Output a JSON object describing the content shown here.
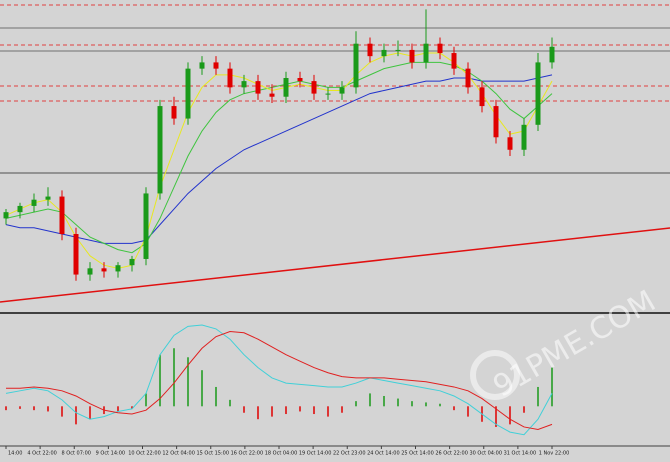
{
  "chart_data": {
    "type": "candlestick",
    "x_labels": [
      "14:00",
      "4 Oct 22:00",
      "8 Oct 07:00",
      "9 Oct 14:00",
      "10 Oct 22:00",
      "12 Oct 04:00",
      "15 Oct 15:00",
      "16 Oct 22:00",
      "18 Oct 04:00",
      "19 Oct 14:00",
      "22 Oct 23:00",
      "24 Oct 14:00",
      "25 Oct 14:00",
      "26 Oct 22:00",
      "30 Oct 04:00",
      "31 Oct 14:00",
      "1 Nov 22:00"
    ],
    "open": [
      30,
      32,
      34,
      36,
      37,
      25,
      12,
      14,
      13,
      15,
      17,
      38,
      66,
      62,
      78,
      80,
      78,
      72,
      74,
      70,
      69,
      75,
      74,
      70,
      70,
      72,
      86,
      82,
      84,
      84,
      80,
      86,
      83,
      78,
      72,
      66,
      56,
      52,
      60,
      80
    ],
    "high": [
      33,
      35,
      38,
      40,
      39,
      27,
      16,
      16,
      16,
      18,
      40,
      68,
      69,
      80,
      82,
      82,
      80,
      76,
      76,
      73,
      77,
      77,
      76,
      72,
      74,
      90,
      88,
      86,
      87,
      86,
      97,
      88,
      85,
      80,
      74,
      68,
      58,
      62,
      83,
      88
    ],
    "low": [
      28,
      30,
      32,
      34,
      23,
      10,
      10,
      11,
      11,
      13,
      15,
      36,
      60,
      60,
      76,
      76,
      70,
      70,
      68,
      67,
      67,
      72,
      68,
      68,
      68,
      70,
      80,
      80,
      82,
      78,
      78,
      81,
      76,
      70,
      64,
      54,
      50,
      50,
      58,
      78
    ],
    "close": [
      32,
      34,
      36,
      37,
      25,
      12,
      14,
      13,
      15,
      17,
      38,
      66,
      62,
      78,
      80,
      78,
      72,
      74,
      70,
      69,
      75,
      74,
      70,
      70,
      72,
      86,
      82,
      84,
      84,
      80,
      86,
      83,
      78,
      72,
      66,
      56,
      52,
      60,
      80,
      85
    ],
    "up_color": "#1a9a1a",
    "down_color": "#e00000",
    "ylim": [
      0,
      100
    ],
    "series": [
      {
        "color": "#2233cc",
        "values": [
          28,
          27,
          27,
          26,
          25,
          24,
          23,
          22,
          22,
          22,
          23,
          28,
          33,
          38,
          42,
          46,
          49,
          52,
          54,
          56,
          58,
          60,
          62,
          64,
          66,
          68,
          70,
          71,
          72,
          73,
          74,
          74,
          75,
          75,
          74,
          74,
          74,
          74,
          75,
          76
        ]
      },
      {
        "color": "#3fc43f",
        "values": [
          30,
          31,
          32,
          33,
          32,
          28,
          24,
          22,
          20,
          19,
          22,
          30,
          40,
          50,
          58,
          64,
          68,
          70,
          71,
          72,
          73,
          74,
          73,
          72,
          72,
          74,
          76,
          78,
          79,
          80,
          80,
          80,
          79,
          77,
          74,
          70,
          65,
          62,
          66,
          70
        ]
      },
      {
        "color": "#e8e820",
        "values": [
          31,
          33,
          35,
          36,
          32,
          24,
          18,
          15,
          14,
          15,
          24,
          40,
          52,
          64,
          72,
          76,
          76,
          75,
          73,
          71,
          72,
          73,
          72,
          71,
          71,
          76,
          80,
          82,
          83,
          82,
          83,
          83,
          80,
          76,
          70,
          63,
          57,
          58,
          66,
          74
        ]
      }
    ],
    "macd": {
      "ylim": [
        -30,
        70
      ],
      "histogram": [
        -3,
        -2,
        -3,
        -4,
        -8,
        -14,
        -10,
        -6,
        -4,
        -2,
        10,
        40,
        45,
        38,
        28,
        15,
        5,
        -5,
        -10,
        -8,
        -6,
        -4,
        -6,
        -8,
        -5,
        4,
        10,
        8,
        6,
        4,
        3,
        2,
        -3,
        -8,
        -12,
        -16,
        -14,
        -5,
        15,
        30
      ],
      "series": [
        {
          "color": "#40d0d8",
          "values": [
            10,
            12,
            14,
            12,
            5,
            -5,
            -10,
            -8,
            -4,
            -2,
            10,
            40,
            55,
            62,
            63,
            60,
            52,
            40,
            30,
            22,
            18,
            17,
            16,
            15,
            15,
            18,
            22,
            20,
            18,
            16,
            14,
            12,
            8,
            2,
            -6,
            -14,
            -20,
            -22,
            -10,
            10
          ]
        },
        {
          "color": "#e02020",
          "values": [
            14,
            14,
            15,
            14,
            12,
            8,
            2,
            -3,
            -5,
            -6,
            -3,
            6,
            18,
            32,
            45,
            54,
            58,
            57,
            52,
            46,
            40,
            35,
            30,
            26,
            23,
            22,
            22,
            22,
            21,
            20,
            19,
            17,
            15,
            12,
            6,
            -2,
            -10,
            -16,
            -18,
            -14
          ]
        }
      ]
    },
    "watermark": "91PME.COM"
  }
}
